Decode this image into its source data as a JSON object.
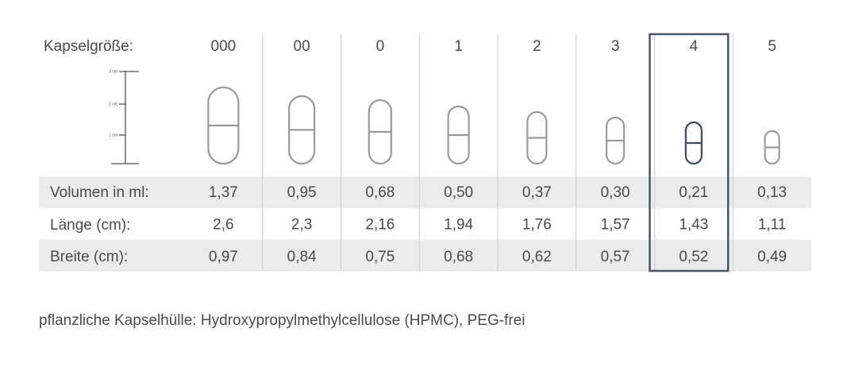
{
  "header": {
    "label": "Kapselgröße:",
    "sizes": [
      "000",
      "00",
      "0",
      "1",
      "2",
      "3",
      "4",
      "5"
    ]
  },
  "scale": {
    "labels": [
      "3 cm",
      "2 cm",
      "1 cm"
    ]
  },
  "rows": [
    {
      "label": "Volumen in ml:",
      "values": [
        "1,37",
        "0,95",
        "0,68",
        "0,50",
        "0,37",
        "0,30",
        "0,21",
        "0,13"
      ]
    },
    {
      "label": "Länge (cm):",
      "values": [
        "2,6",
        "2,3",
        "2,16",
        "1,94",
        "1,76",
        "1,57",
        "1,43",
        "1,11"
      ]
    },
    {
      "label": "Breite (cm):",
      "values": [
        "0,97",
        "0,84",
        "0,75",
        "0,68",
        "0,62",
        "0,57",
        "0,52",
        "0,49"
      ]
    }
  ],
  "footer": "pflanzliche Kapselhülle: Hydroxypropylmethylcellulose (HPMC), PEG-frei"
}
